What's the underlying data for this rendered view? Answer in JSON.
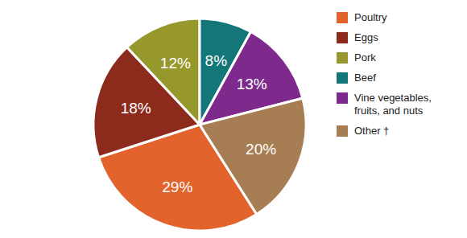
{
  "chart_data": {
    "type": "pie",
    "categories": [
      "Poultry",
      "Eggs",
      "Pork",
      "Beef",
      "Vine vegetables, fruits, and nuts",
      "Other †"
    ],
    "values": [
      29,
      18,
      12,
      8,
      13,
      20
    ],
    "value_labels": [
      "29%",
      "18%",
      "12%",
      "8%",
      "13%",
      "20%"
    ],
    "colors": [
      "#e2642c",
      "#8c2b1c",
      "#97982b",
      "#137679",
      "#7d2a8c",
      "#a77d54"
    ],
    "data_labels": true,
    "legend": "right"
  }
}
